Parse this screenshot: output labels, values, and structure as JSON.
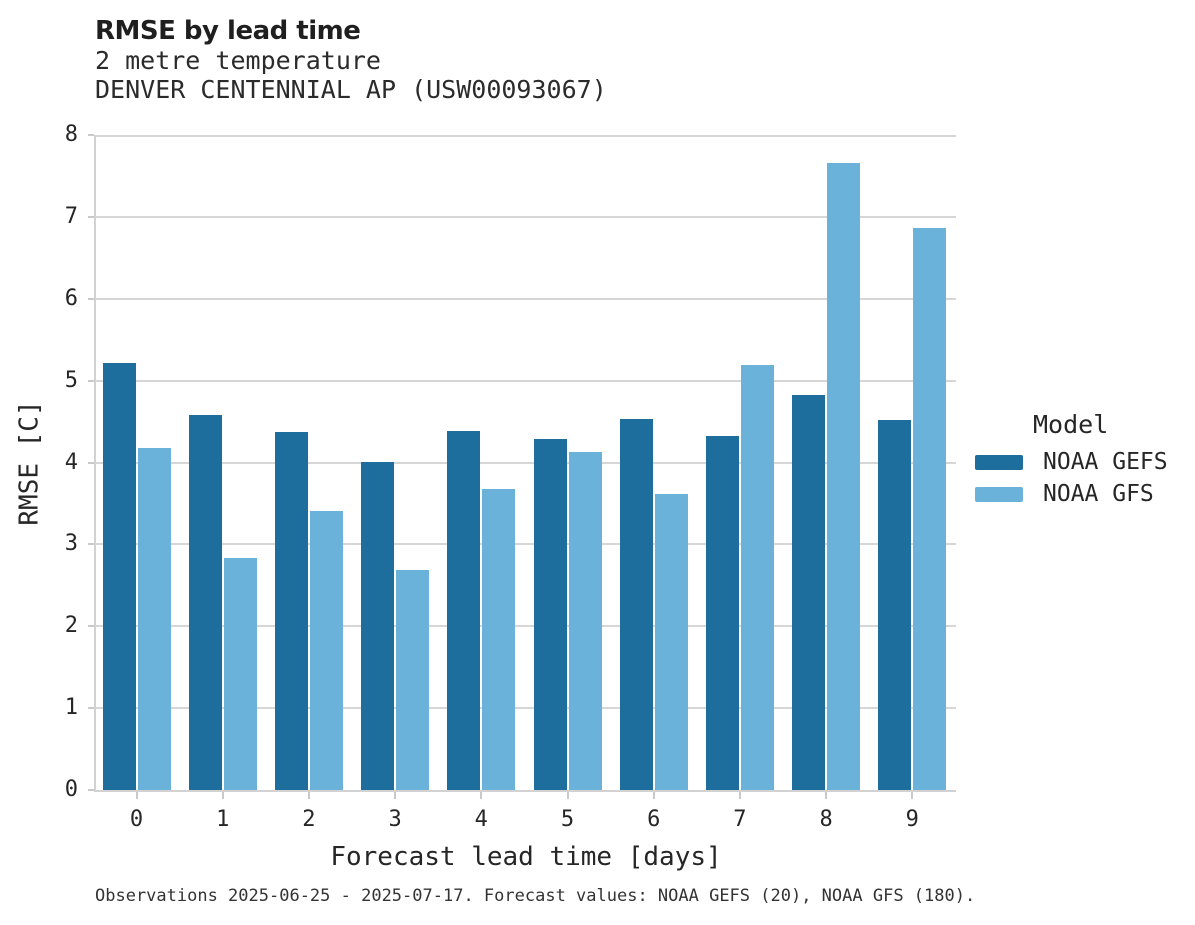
{
  "header": {
    "title": "RMSE by lead time",
    "subtitle": "2 metre temperature",
    "station": "DENVER CENTENNIAL AP (USW00093067)"
  },
  "legend": {
    "title": "Model",
    "items": [
      {
        "label": "NOAA GEFS",
        "color": "#1d6e9c"
      },
      {
        "label": "NOAA GFS",
        "color": "#6ab2d9"
      }
    ]
  },
  "footer": {
    "text": "Observations 2025-06-25 - 2025-07-17. Forecast values: NOAA GEFS (20), NOAA GFS (180)."
  },
  "chart_data": {
    "type": "bar",
    "title": "RMSE by lead time",
    "subtitle": "2 metre temperature",
    "station": "DENVER CENTENNIAL AP (USW00093067)",
    "xlabel": "Forecast lead time [days]",
    "ylabel": "RMSE [C]",
    "categories": [
      "0",
      "1",
      "2",
      "3",
      "4",
      "5",
      "6",
      "7",
      "8",
      "9"
    ],
    "series": [
      {
        "name": "NOAA GEFS",
        "color": "#1d6e9c",
        "values": [
          5.22,
          4.58,
          4.37,
          4.01,
          4.39,
          4.29,
          4.53,
          4.32,
          4.82,
          4.52
        ]
      },
      {
        "name": "NOAA GFS",
        "color": "#6ab2d9",
        "values": [
          4.18,
          2.83,
          3.41,
          2.69,
          3.68,
          4.13,
          3.61,
          5.19,
          7.66,
          6.87
        ]
      }
    ],
    "ylim": [
      0,
      8
    ],
    "yticks": [
      0,
      1,
      2,
      3,
      4,
      5,
      6,
      7,
      8
    ],
    "grid": true,
    "grid_color": "#d6d6d6",
    "legend_position": "right"
  }
}
